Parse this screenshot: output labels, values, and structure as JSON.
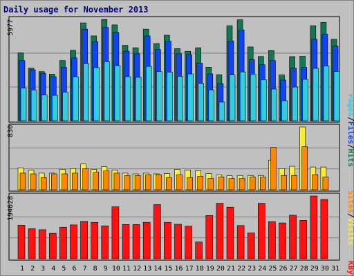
{
  "title": "Daily usage for November 2013",
  "colors": {
    "pages": "#33ccdd",
    "files": "#1144ee",
    "hits": "#117755",
    "visits": "#ffee33",
    "sites": "#ff8800",
    "kbytes": "#ff1111",
    "weekend_day": "#008040",
    "weekday": "#000000"
  },
  "labels": {
    "pages": "Pages",
    "files": "Files",
    "hits": "Hits",
    "visits": "Visits",
    "sites": "Sites",
    "kbytes": "KBytes",
    "sep": "/"
  },
  "chart_data": [
    {
      "type": "bar",
      "title": "Daily usage for November 2013",
      "x": [
        "1",
        "2",
        "3",
        "4",
        "5",
        "6",
        "7",
        "8",
        "9",
        "10",
        "11",
        "12",
        "13",
        "14",
        "15",
        "16",
        "17",
        "18",
        "19",
        "20",
        "21",
        "22",
        "23",
        "24",
        "25",
        "26",
        "27",
        "28",
        "29",
        "30",
        "31"
      ],
      "weekend_days": [
        "2",
        "3",
        "9",
        "10",
        "16",
        "17",
        "23",
        "24",
        "30",
        "31"
      ],
      "ymax_label": "5977",
      "ylim": [
        0,
        5977
      ],
      "series": [
        {
          "name": "Hits",
          "values": [
            4000,
            3100,
            2900,
            2750,
            3550,
            4150,
            5770,
            5000,
            5970,
            5650,
            4450,
            4300,
            5400,
            4550,
            5040,
            4250,
            4100,
            4300,
            3160,
            2710,
            5600,
            5950,
            4350,
            3790,
            4140,
            2700,
            3780,
            3800,
            5600,
            5800,
            4800
          ]
        },
        {
          "name": "Files",
          "values": [
            3550,
            3000,
            2800,
            2600,
            3150,
            3700,
            5400,
            4650,
            5500,
            5200,
            4100,
            3950,
            5000,
            4200,
            4700,
            3950,
            3900,
            3400,
            2760,
            2190,
            4700,
            5350,
            3600,
            3300,
            3550,
            2400,
            3100,
            3150,
            4800,
            5100,
            4400
          ]
        },
        {
          "name": "Pages",
          "values": [
            1920,
            1800,
            1520,
            1500,
            1680,
            2580,
            3370,
            3130,
            3480,
            3250,
            2600,
            2560,
            3210,
            2900,
            2860,
            2620,
            2760,
            2200,
            1820,
            1100,
            2700,
            2880,
            2730,
            2420,
            1870,
            1180,
            1990,
            2440,
            3090,
            3220,
            2900
          ]
        }
      ]
    },
    {
      "type": "bar",
      "ymax_label": "830",
      "ylim": [
        0,
        830
      ],
      "series": [
        {
          "name": "Visits",
          "values": [
            290,
            260,
            220,
            220,
            270,
            280,
            340,
            270,
            305,
            260,
            220,
            210,
            220,
            210,
            215,
            270,
            260,
            250,
            215,
            195,
            185,
            190,
            190,
            190,
            390,
            280,
            310,
            830,
            300,
            300,
            0
          ]
        },
        {
          "name": "Sites",
          "values": [
            220,
            210,
            160,
            210,
            210,
            220,
            280,
            230,
            250,
            220,
            190,
            190,
            200,
            200,
            160,
            200,
            160,
            180,
            150,
            170,
            150,
            150,
            170,
            170,
            560,
            190,
            190,
            570,
            200,
            170,
            0
          ]
        }
      ]
    },
    {
      "type": "bar",
      "ymax_label": "194628",
      "ylim": [
        0,
        194628
      ],
      "series": [
        {
          "name": "KBytes",
          "values": [
            104000,
            93000,
            90000,
            79000,
            98000,
            105000,
            116000,
            113000,
            102000,
            161000,
            106000,
            106000,
            113000,
            168000,
            113000,
            107000,
            101000,
            52000,
            134000,
            172000,
            160000,
            103000,
            80000,
            172000,
            115000,
            111000,
            135000,
            119000,
            194628,
            184000,
            0
          ]
        }
      ]
    }
  ]
}
